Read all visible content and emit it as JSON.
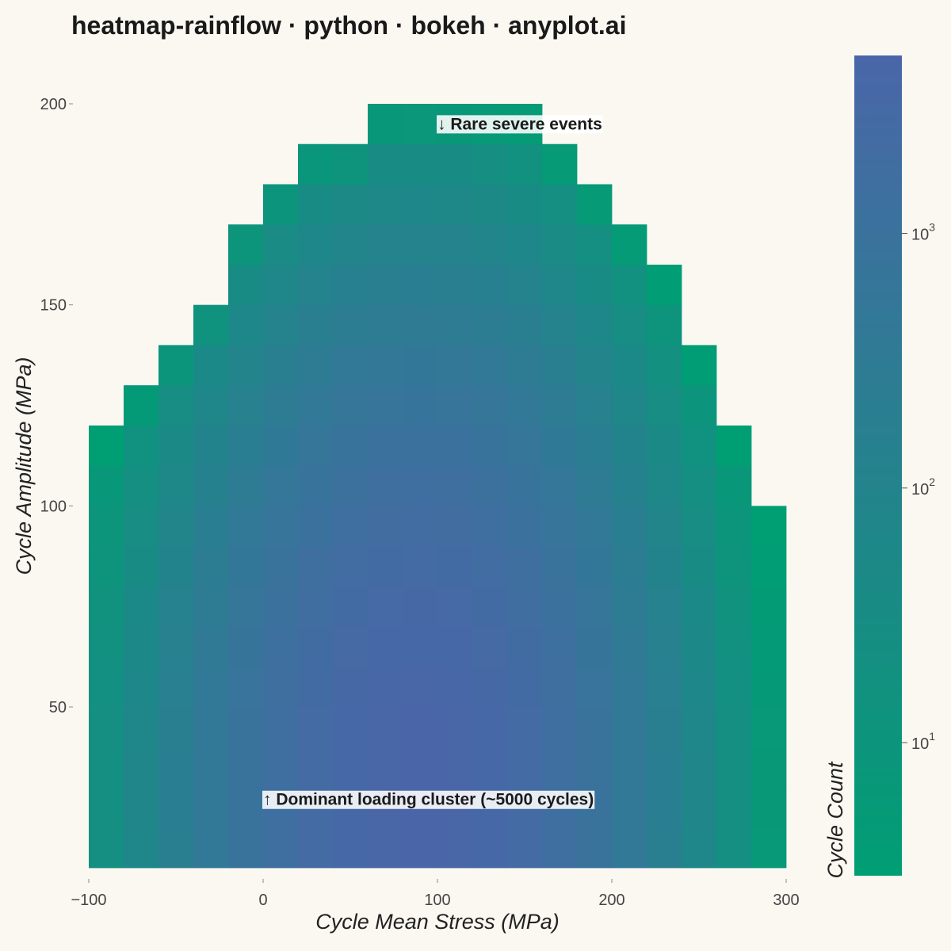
{
  "title": "heatmap-rainflow · python · bokeh · anyplot.ai",
  "chart_data": {
    "type": "heatmap",
    "title": "heatmap-rainflow · python · bokeh · anyplot.ai",
    "xlabel": "Cycle Mean Stress (MPa)",
    "ylabel": "Cycle Amplitude (MPa)",
    "colorbar_label": "Cycle Count",
    "x_ticks": [
      "−100",
      "0",
      "100",
      "200",
      "300"
    ],
    "y_ticks": [
      "50",
      "100",
      "150",
      "200"
    ],
    "cb_ticks": [
      {
        "base": "10",
        "exp": "1",
        "value": 10
      },
      {
        "base": "10",
        "exp": "2",
        "value": 100
      },
      {
        "base": "10",
        "exp": "3",
        "value": 1000
      }
    ],
    "xlim": [
      -100,
      300
    ],
    "ylim": [
      10,
      200
    ],
    "x_bin_width": 20,
    "y_bin_height": 10,
    "count_range": [
      3,
      5000
    ],
    "log_color_scale": true,
    "grid": false,
    "colors": {
      "low": "#009E73",
      "high": "#4A66A8"
    },
    "peak_mean_stress": 90,
    "peak_amplitude": 30,
    "peak_count": 5000,
    "max_amplitude_by_mean_bin": [
      {
        "mean_start": -100,
        "max_amplitude": 120
      },
      {
        "mean_start": -80,
        "max_amplitude": 130
      },
      {
        "mean_start": -60,
        "max_amplitude": 140
      },
      {
        "mean_start": -40,
        "max_amplitude": 150
      },
      {
        "mean_start": -20,
        "max_amplitude": 170
      },
      {
        "mean_start": 0,
        "max_amplitude": 180
      },
      {
        "mean_start": 20,
        "max_amplitude": 190
      },
      {
        "mean_start": 40,
        "max_amplitude": 190
      },
      {
        "mean_start": 60,
        "max_amplitude": 200
      },
      {
        "mean_start": 80,
        "max_amplitude": 200
      },
      {
        "mean_start": 100,
        "max_amplitude": 200
      },
      {
        "mean_start": 120,
        "max_amplitude": 200
      },
      {
        "mean_start": 140,
        "max_amplitude": 200
      },
      {
        "mean_start": 160,
        "max_amplitude": 190
      },
      {
        "mean_start": 180,
        "max_amplitude": 180
      },
      {
        "mean_start": 200,
        "max_amplitude": 170
      },
      {
        "mean_start": 220,
        "max_amplitude": 160
      },
      {
        "mean_start": 240,
        "max_amplitude": 140
      },
      {
        "mean_start": 260,
        "max_amplitude": 120
      },
      {
        "mean_start": 280,
        "max_amplitude": 100
      }
    ],
    "annotations": [
      {
        "text": "↓ Rare severe events",
        "x": 100,
        "y": 195
      },
      {
        "text": "↑ Dominant loading cluster (~5000 cycles)",
        "x": 0,
        "y": 27
      }
    ]
  }
}
